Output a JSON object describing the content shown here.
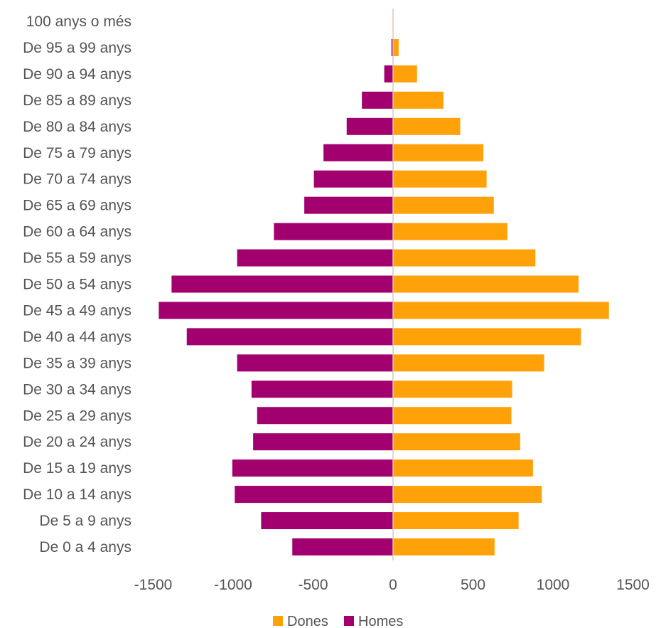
{
  "chart_data": {
    "type": "bar",
    "orientation": "horizontal",
    "categories": [
      "100 anys o més",
      "De 95 a 99 anys",
      "De 90 a 94 anys",
      "De 85 a 89 anys",
      "De 80 a 84 anys",
      "De 75 a 79 anys",
      "De 70 a 74 anys",
      "De 65 a 69 anys",
      "De 60 a 64 anys",
      "De 55 a 59 anys",
      "De 50 a 54 anys",
      "De 45 a 49 anys",
      "De 40 a 44 anys",
      "De 35 a 39 anys",
      "De 30 a 34 anys",
      "De 25 a 29 anys",
      "De 20 a 24 anys",
      "De 15 a 19 anys",
      "De 10 a 14 anys",
      "De 5 a 9 anys",
      "De 0 a 4 anys"
    ],
    "series": [
      {
        "name": "Dones",
        "color": "#FFA20A",
        "values": [
          2,
          35,
          150,
          315,
          420,
          565,
          585,
          630,
          715,
          890,
          1160,
          1350,
          1175,
          945,
          745,
          740,
          795,
          875,
          930,
          785,
          635
        ]
      },
      {
        "name": "Homes",
        "color": "#A2006E",
        "values": [
          0,
          -10,
          -55,
          -195,
          -290,
          -435,
          -495,
          -555,
          -745,
          -975,
          -1385,
          -1465,
          -1290,
          -975,
          -885,
          -850,
          -875,
          -1005,
          -990,
          -825,
          -630
        ]
      }
    ],
    "xlim": [
      -1500,
      1500
    ],
    "xticks": [
      "-1500",
      "-1000",
      "-500",
      "0",
      "500",
      "1000",
      "1500"
    ],
    "xlabel": "",
    "ylabel": "",
    "title": "",
    "grid": false,
    "legend_position": "bottom"
  }
}
